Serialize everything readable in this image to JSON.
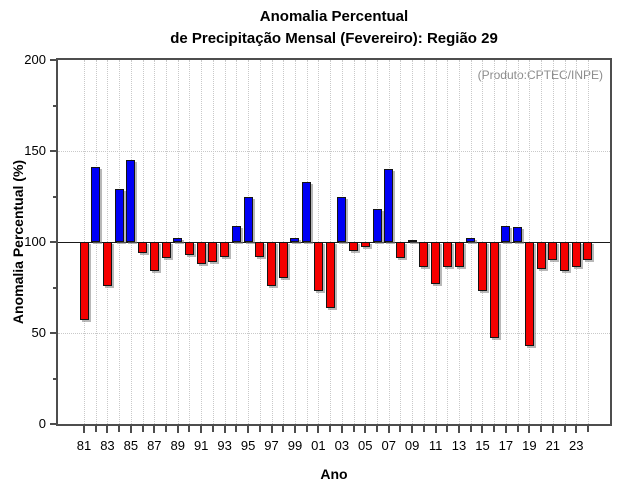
{
  "chart_data": {
    "type": "bar",
    "title_line1": "Anomalia Percentual",
    "title_line2": "de Precipitação Mensal (Fevereiro): Região 29",
    "annotation": "(Produto:CPTEC/INPE)",
    "ylabel": "Anomalia Percentual (%)",
    "xlabel": "Ano",
    "ylim": [
      0,
      200
    ],
    "yticks": [
      0,
      50,
      100,
      150,
      200
    ],
    "yticks_minor": [
      25,
      75,
      125,
      175
    ],
    "grid_values": [
      50,
      150
    ],
    "baseline": 100,
    "grid": "dotted",
    "legend_position": "none",
    "x_tick_labels": [
      "81",
      "83",
      "85",
      "87",
      "89",
      "91",
      "93",
      "95",
      "97",
      "99",
      "01",
      "03",
      "05",
      "07",
      "09",
      "11",
      "13",
      "15",
      "17",
      "19",
      "21",
      "23"
    ],
    "years": [
      1981,
      1982,
      1983,
      1984,
      1985,
      1986,
      1987,
      1988,
      1989,
      1990,
      1991,
      1992,
      1993,
      1994,
      1995,
      1996,
      1997,
      1998,
      1999,
      2000,
      2001,
      2002,
      2003,
      2004,
      2005,
      2006,
      2007,
      2008,
      2009,
      2010,
      2011,
      2012,
      2013,
      2014,
      2015,
      2016,
      2017,
      2018,
      2019,
      2020,
      2021,
      2022,
      2023,
      2024
    ],
    "values": [
      57,
      141,
      76,
      129,
      145,
      94,
      84,
      91,
      102,
      93,
      88,
      89,
      92,
      109,
      125,
      92,
      76,
      80,
      102,
      133,
      73,
      64,
      125,
      95,
      97,
      118,
      140,
      91,
      101,
      86,
      77,
      86,
      86,
      102,
      73,
      47,
      109,
      108,
      43,
      85,
      90,
      84,
      86,
      90
    ],
    "colors": {
      "above_baseline": "#0000f5",
      "below_baseline": "#f50000",
      "bar_border": "#141414",
      "bar_shadow": "#7d7d7d",
      "frame": "#4d4d4d",
      "gridline": "#c9c9c9",
      "baseline_line": "#1a1a1a",
      "annotation_text": "#8c8c8c",
      "text": "#000000"
    }
  }
}
